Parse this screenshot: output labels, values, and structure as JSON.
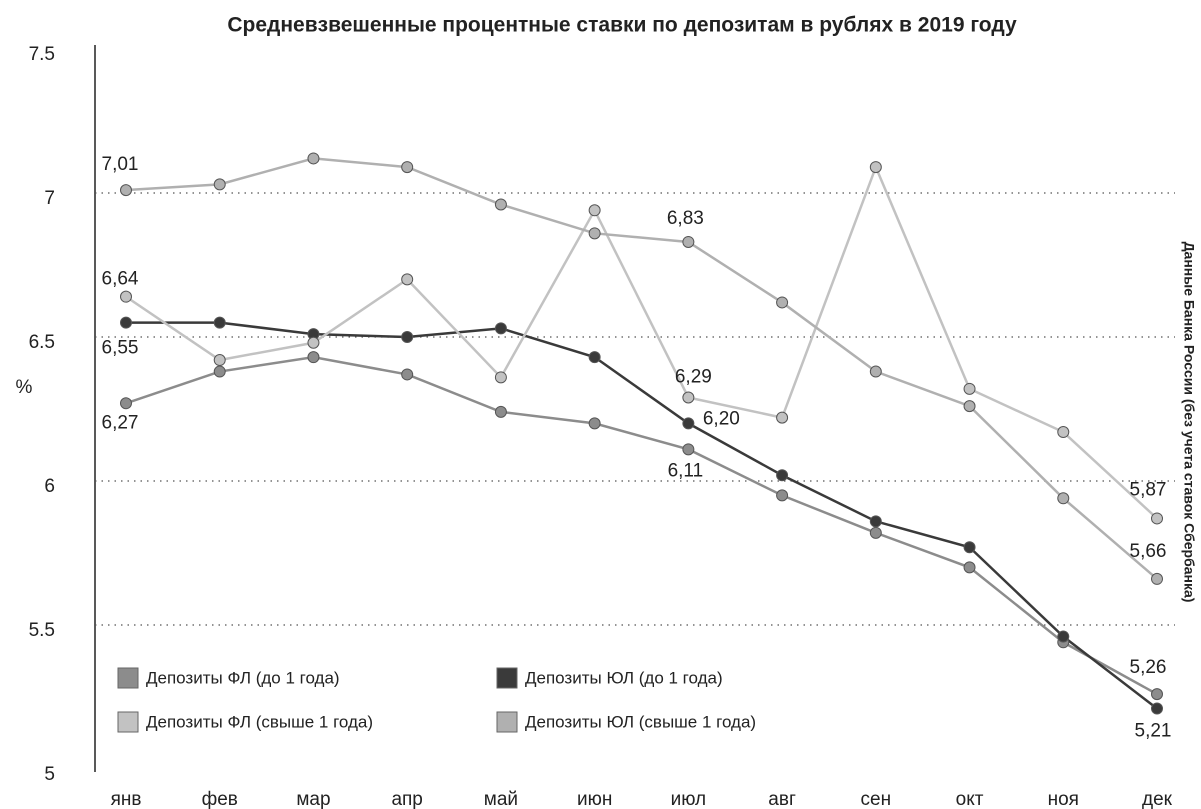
{
  "chart_data": {
    "type": "line",
    "title": "Средневзвешенные процентные ставки по депозитам в рублях в 2019 году",
    "y_label": "%",
    "annotation": "Данные Банка России (без учета ставок Сбербанка)",
    "categories": [
      "янв",
      "фев",
      "мар",
      "апр",
      "май",
      "июн",
      "июл",
      "авг",
      "сен",
      "окт",
      "ноя",
      "дек"
    ],
    "ylim": [
      5,
      7.5
    ],
    "yticks": [
      5,
      5.5,
      6,
      6.5,
      7,
      7.5
    ],
    "grid": true,
    "series": [
      {
        "name": "Депозиты ФЛ (до 1 года)",
        "color": "#8c8c8c",
        "values": [
          6.27,
          6.38,
          6.43,
          6.37,
          6.24,
          6.2,
          6.11,
          5.95,
          5.82,
          5.7,
          5.44,
          5.26
        ],
        "value_labels": [
          "6,27",
          null,
          null,
          null,
          null,
          null,
          "6,11",
          null,
          null,
          null,
          null,
          "5,26"
        ]
      },
      {
        "name": "Депозиты ЮЛ (до 1 года)",
        "color": "#3a3a3a",
        "values": [
          6.55,
          6.55,
          6.51,
          6.5,
          6.53,
          6.43,
          6.2,
          6.02,
          5.86,
          5.77,
          5.46,
          5.21
        ],
        "value_labels": [
          "6,55",
          null,
          null,
          null,
          null,
          null,
          "6,20",
          null,
          null,
          null,
          null,
          "5,21"
        ]
      },
      {
        "name": "Депозиты ФЛ (свыше 1 года)",
        "color": "#c2c2c2",
        "values": [
          6.64,
          6.42,
          6.48,
          6.7,
          6.36,
          6.94,
          6.29,
          6.22,
          7.09,
          6.32,
          6.17,
          5.87
        ],
        "value_labels": [
          "6,64",
          null,
          null,
          null,
          null,
          null,
          "6,29",
          null,
          null,
          null,
          null,
          "5,87"
        ]
      },
      {
        "name": "Депозиты ЮЛ (свыше 1 года)",
        "color": "#b0b0b0",
        "values": [
          7.01,
          7.03,
          7.12,
          7.09,
          6.96,
          6.86,
          6.83,
          6.62,
          6.38,
          6.26,
          5.94,
          5.66
        ],
        "value_labels": [
          "7,01",
          null,
          null,
          null,
          null,
          null,
          "6,83",
          null,
          null,
          null,
          null,
          "5,66"
        ]
      }
    ]
  }
}
